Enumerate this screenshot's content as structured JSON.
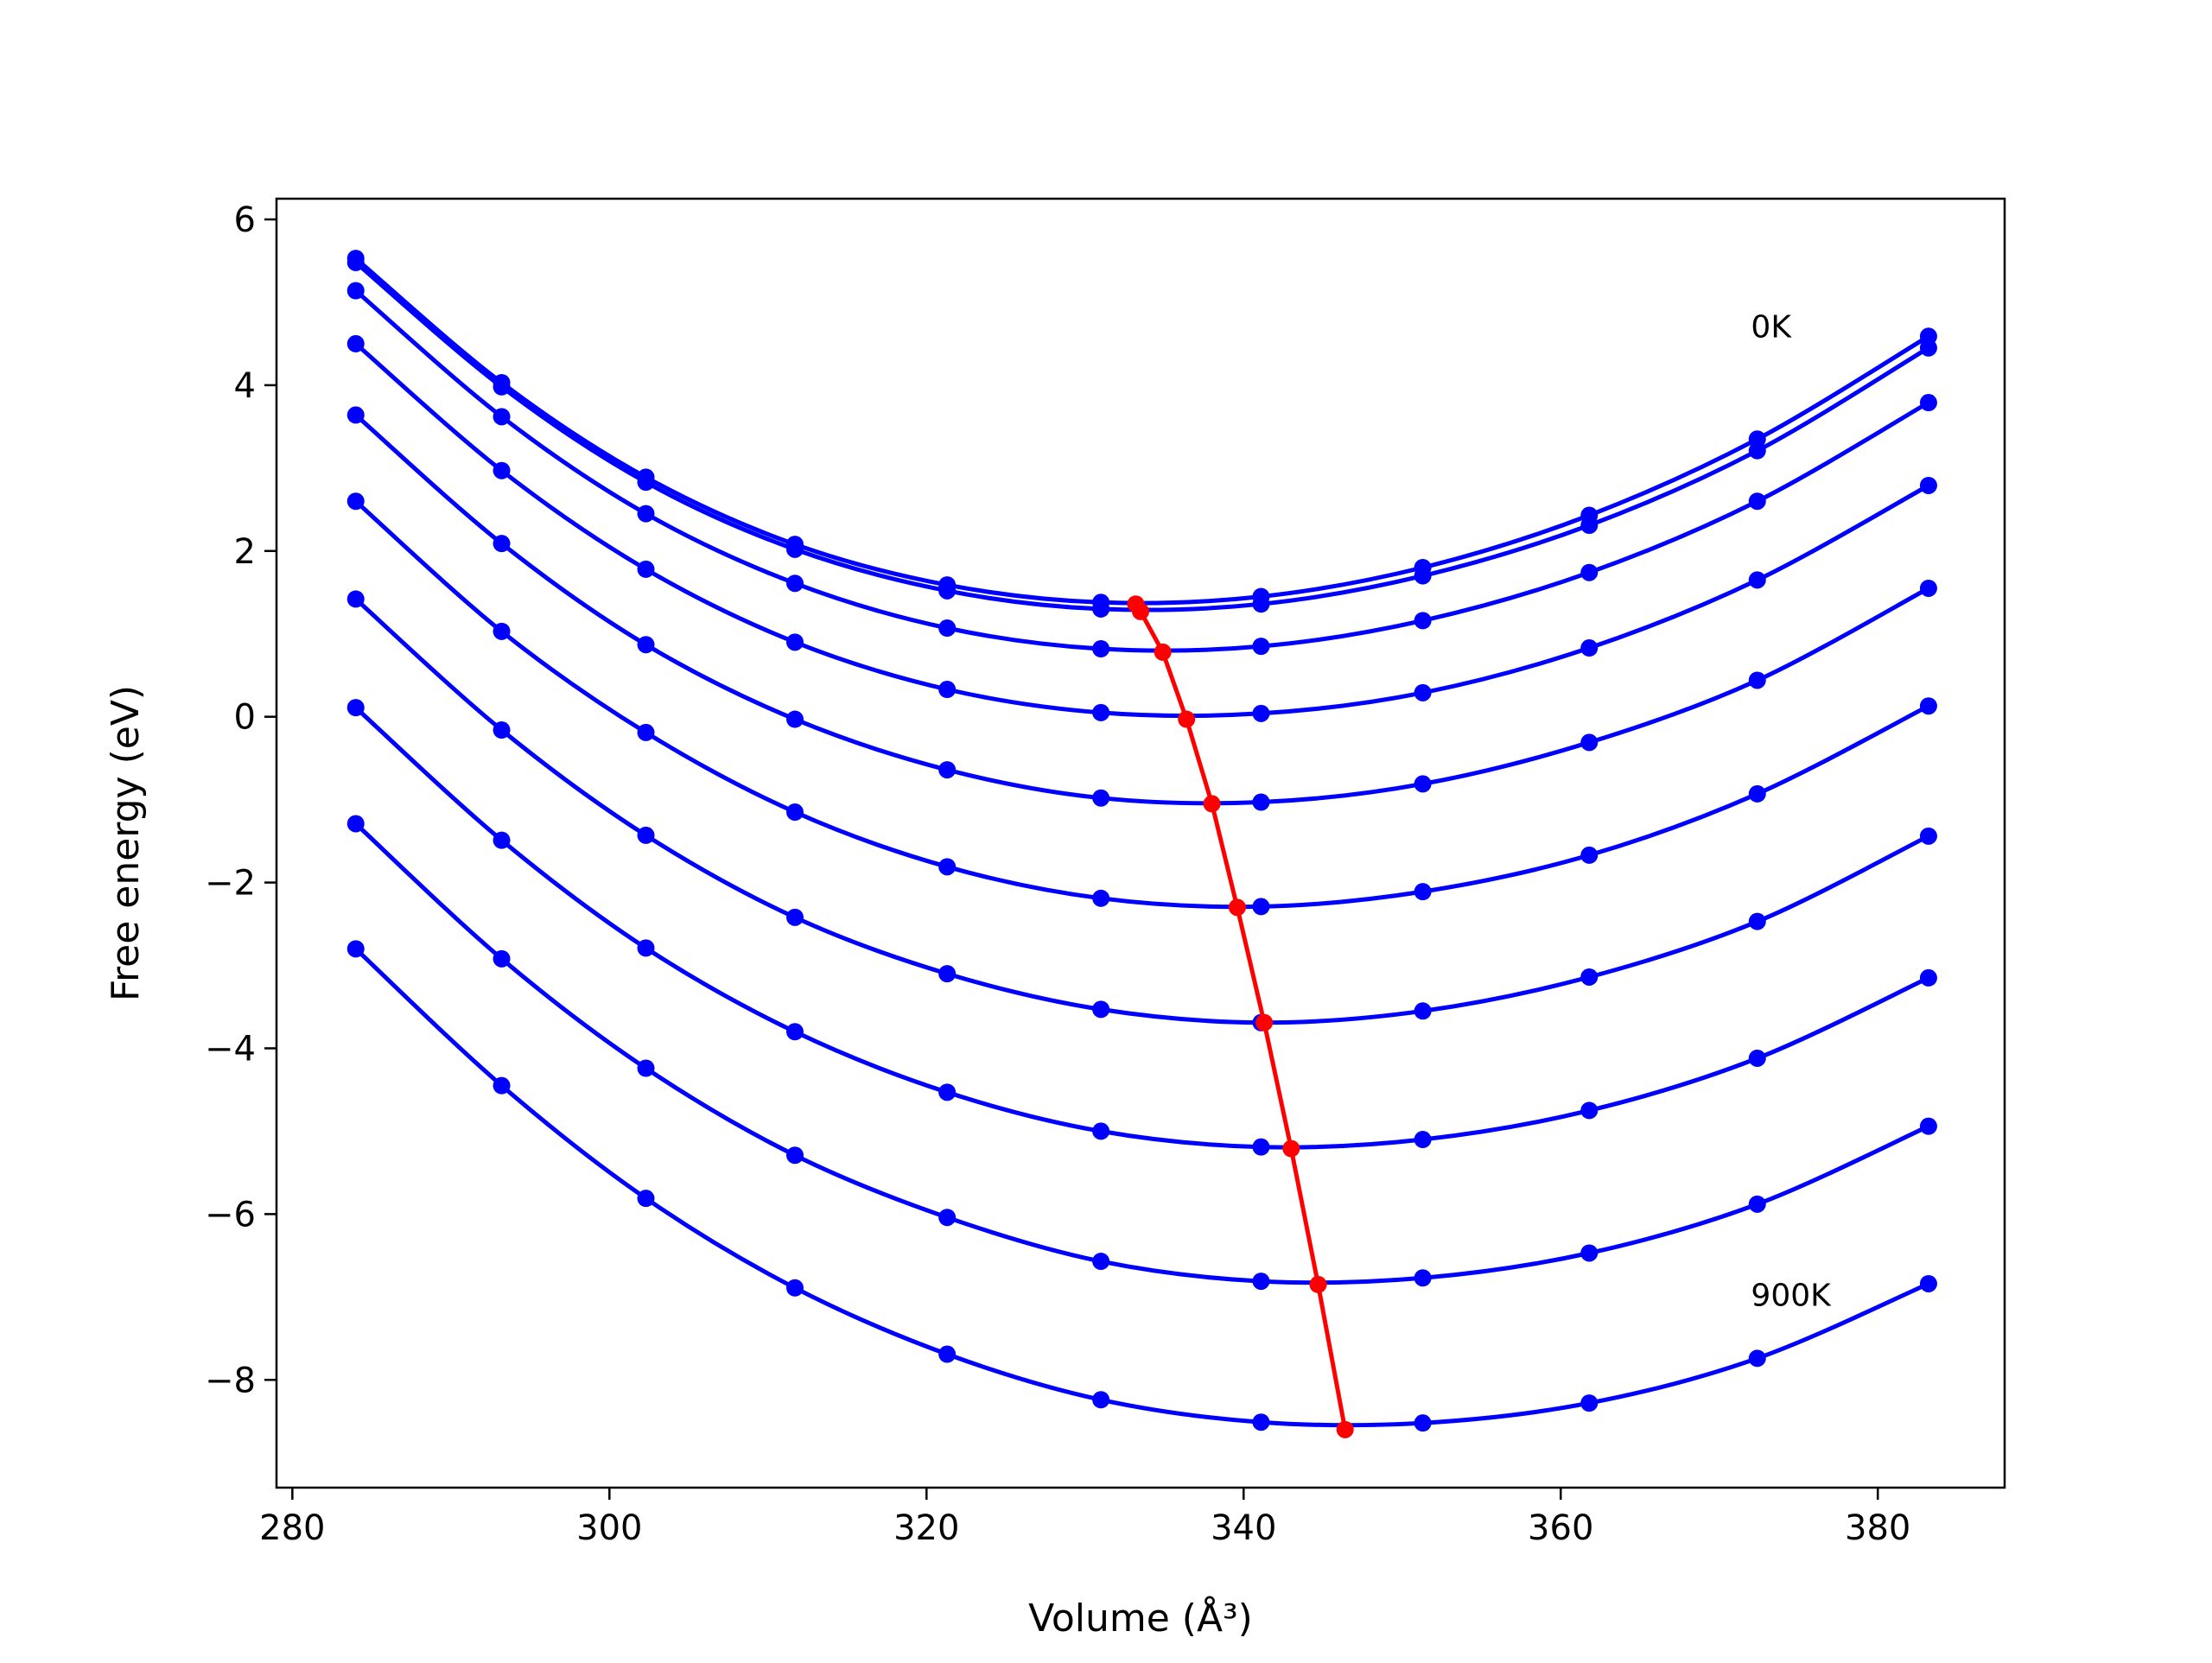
{
  "chart_data": {
    "type": "line",
    "xlabel": "Volume (Å³)",
    "ylabel": "Free energy (eV)",
    "xlim": [
      279,
      388
    ],
    "ylim": [
      -9.3,
      6.25
    ],
    "x_ticks": [
      280,
      300,
      320,
      340,
      360,
      380
    ],
    "y_ticks": [
      -8,
      -6,
      -4,
      -2,
      0,
      2,
      4,
      6
    ],
    "x_tick_labels": [
      "280",
      "300",
      "320",
      "340",
      "360",
      "380"
    ],
    "y_tick_labels": [
      "−8",
      "−6",
      "−4",
      "−2",
      "0",
      "2",
      "4",
      "6"
    ],
    "grid": false,
    "x": [
      284,
      293.2,
      302.3,
      311.7,
      321.3,
      331,
      341.1,
      351.3,
      361.8,
      372.4,
      383.2
    ],
    "series": [
      {
        "color": "#0000ff",
        "values": [
          5.53,
          4.03,
          2.89,
          2.08,
          1.59,
          1.38,
          1.45,
          1.8,
          2.43,
          3.35,
          4.59
        ]
      },
      {
        "color": "#0000ff",
        "values": [
          5.48,
          3.98,
          2.83,
          2.02,
          1.52,
          1.3,
          1.36,
          1.7,
          2.31,
          3.21,
          4.45
        ]
      },
      {
        "color": "#0000ff",
        "values": [
          5.14,
          3.62,
          2.45,
          1.61,
          1.07,
          0.82,
          0.85,
          1.16,
          1.74,
          2.6,
          3.79
        ]
      },
      {
        "color": "#0000ff",
        "values": [
          4.5,
          2.97,
          1.78,
          0.9,
          0.33,
          0.05,
          0.04,
          0.29,
          0.83,
          1.65,
          2.79
        ]
      },
      {
        "color": "#0000ff",
        "values": [
          3.64,
          2.09,
          0.87,
          -0.03,
          -0.64,
          -0.98,
          -1.03,
          -0.81,
          -0.31,
          0.44,
          1.55
        ]
      },
      {
        "color": "#0000ff",
        "values": [
          2.6,
          1.03,
          -0.19,
          -1.15,
          -1.81,
          -2.19,
          -2.29,
          -2.11,
          -1.67,
          -0.93,
          0.13
        ]
      },
      {
        "color": "#0000ff",
        "values": [
          1.42,
          -0.16,
          -1.43,
          -2.42,
          -3.1,
          -3.53,
          -3.69,
          -3.55,
          -3.14,
          -2.47,
          -1.44
        ]
      },
      {
        "color": "#0000ff",
        "values": [
          0.11,
          -1.49,
          -2.79,
          -3.8,
          -4.53,
          -5.0,
          -5.19,
          -5.1,
          -4.75,
          -4.12,
          -3.15
        ]
      },
      {
        "color": "#0000ff",
        "values": [
          -1.29,
          -2.92,
          -4.24,
          -5.29,
          -6.04,
          -6.57,
          -6.81,
          -6.77,
          -6.47,
          -5.88,
          -4.94
        ]
      },
      {
        "color": "#0000ff",
        "values": [
          -2.8,
          -4.45,
          -5.81,
          -6.89,
          -7.69,
          -8.24,
          -8.51,
          -8.52,
          -8.28,
          -7.74,
          -6.84
        ]
      }
    ],
    "minima": {
      "color": "#ff0000",
      "x": [
        333.2,
        333.5,
        334.9,
        336.4,
        338.0,
        339.6,
        341.3,
        343.0,
        344.7,
        346.4
      ],
      "y": [
        1.36,
        1.27,
        0.78,
        -0.03,
        -1.05,
        -2.3,
        -3.69,
        -5.21,
        -6.85,
        -8.6
      ]
    },
    "annotations": [
      {
        "text": "0K",
        "x": 372,
        "y": 4.7
      },
      {
        "text": "900K",
        "x": 372,
        "y": -6.98
      }
    ]
  }
}
